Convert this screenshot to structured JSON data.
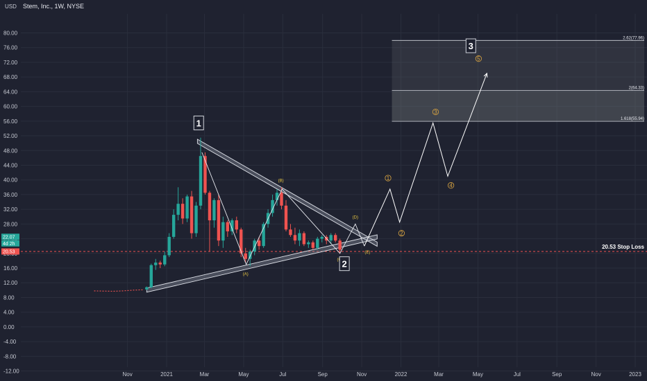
{
  "header": {
    "ticker_title": "Stem, Inc., 1W, NYSE",
    "currency": "USD"
  },
  "chart_data": {
    "type": "candlestick",
    "title": "Stem, Inc., 1W, NYSE",
    "currency": "USD",
    "ylim": [
      -14,
      84
    ],
    "y_ticks": [
      80,
      76,
      72,
      68,
      64,
      60,
      56,
      52,
      48,
      44,
      40,
      36,
      32,
      28,
      24,
      20,
      16,
      12,
      8,
      4,
      0,
      -4,
      -8,
      -12
    ],
    "y_tick_labels": [
      "80.00",
      "76.00",
      "72.00",
      "68.00",
      "64.00",
      "60.00",
      "56.00",
      "52.00",
      "48.00",
      "44.00",
      "40.00",
      "36.00",
      "32.00",
      "28.00",
      "24.00",
      "20.00",
      "16.00",
      "12.00",
      "8.00",
      "4.00",
      "0.00",
      "-4.00",
      "-8.00",
      "-12.00"
    ],
    "x_ticks": [
      {
        "label": "Nov",
        "date": "2020-11-01"
      },
      {
        "label": "2021",
        "date": "2021-01-01"
      },
      {
        "label": "Mar",
        "date": "2021-03-01"
      },
      {
        "label": "May",
        "date": "2021-05-01"
      },
      {
        "label": "Jul",
        "date": "2021-07-01"
      },
      {
        "label": "Sep",
        "date": "2021-09-01"
      },
      {
        "label": "Nov",
        "date": "2021-11-01"
      },
      {
        "label": "2022",
        "date": "2022-01-01"
      },
      {
        "label": "Mar",
        "date": "2022-03-01"
      },
      {
        "label": "May",
        "date": "2022-05-01"
      },
      {
        "label": "Jul",
        "date": "2022-07-01"
      },
      {
        "label": "Sep",
        "date": "2022-09-01"
      },
      {
        "label": "Nov",
        "date": "2022-11-01"
      },
      {
        "label": "2023",
        "date": "2023-01-01"
      }
    ],
    "pre_listing_line": [
      {
        "date": "2020-09-10",
        "y": 9.8
      },
      {
        "date": "2020-09-25",
        "y": 9.75
      },
      {
        "date": "2020-10-10",
        "y": 9.7
      },
      {
        "date": "2020-10-25",
        "y": 9.8
      },
      {
        "date": "2020-11-10",
        "y": 10.0
      },
      {
        "date": "2020-11-25",
        "y": 10.1
      }
    ],
    "candles": [
      {
        "date": "2020-12-01",
        "o": 10.2,
        "h": 11.0,
        "l": 10.0,
        "c": 10.8
      },
      {
        "date": "2020-12-08",
        "o": 10.8,
        "h": 17.2,
        "l": 10.5,
        "c": 16.8
      },
      {
        "date": "2020-12-15",
        "o": 16.8,
        "h": 18.5,
        "l": 15.5,
        "c": 17.5
      },
      {
        "date": "2020-12-22",
        "o": 17.5,
        "h": 18.0,
        "l": 16.0,
        "c": 17.0
      },
      {
        "date": "2020-12-29",
        "o": 17.0,
        "h": 20.5,
        "l": 16.5,
        "c": 19.5
      },
      {
        "date": "2021-01-05",
        "o": 19.5,
        "h": 25.5,
        "l": 19.0,
        "c": 24.5
      },
      {
        "date": "2021-01-12",
        "o": 24.5,
        "h": 32.0,
        "l": 24.0,
        "c": 30.5
      },
      {
        "date": "2021-01-19",
        "o": 30.5,
        "h": 38.0,
        "l": 29.0,
        "c": 33.5
      },
      {
        "date": "2021-01-26",
        "o": 33.5,
        "h": 35.0,
        "l": 28.0,
        "c": 29.5
      },
      {
        "date": "2021-02-02",
        "o": 29.5,
        "h": 36.0,
        "l": 28.5,
        "c": 35.5
      },
      {
        "date": "2021-02-09",
        "o": 35.5,
        "h": 37.0,
        "l": 24.0,
        "c": 25.5
      },
      {
        "date": "2021-02-16",
        "o": 25.5,
        "h": 34.0,
        "l": 24.5,
        "c": 33.0
      },
      {
        "date": "2021-02-23",
        "o": 33.0,
        "h": 51.5,
        "l": 32.0,
        "c": 46.5
      },
      {
        "date": "2021-03-02",
        "o": 46.5,
        "h": 47.5,
        "l": 36.0,
        "c": 36.5
      },
      {
        "date": "2021-03-09",
        "o": 36.5,
        "h": 37.0,
        "l": 20.5,
        "c": 29.0
      },
      {
        "date": "2021-03-16",
        "o": 29.0,
        "h": 35.0,
        "l": 27.0,
        "c": 34.5
      },
      {
        "date": "2021-03-23",
        "o": 34.5,
        "h": 36.0,
        "l": 22.0,
        "c": 23.5
      },
      {
        "date": "2021-03-30",
        "o": 23.5,
        "h": 30.0,
        "l": 21.5,
        "c": 28.5
      },
      {
        "date": "2021-04-06",
        "o": 28.5,
        "h": 29.0,
        "l": 24.5,
        "c": 26.0
      },
      {
        "date": "2021-04-13",
        "o": 26.0,
        "h": 29.5,
        "l": 25.0,
        "c": 29.0
      },
      {
        "date": "2021-04-20",
        "o": 29.0,
        "h": 30.0,
        "l": 25.5,
        "c": 26.5
      },
      {
        "date": "2021-04-27",
        "o": 26.5,
        "h": 27.0,
        "l": 19.0,
        "c": 20.0
      },
      {
        "date": "2021-05-04",
        "o": 20.0,
        "h": 21.5,
        "l": 17.5,
        "c": 18.5
      },
      {
        "date": "2021-05-11",
        "o": 18.5,
        "h": 21.0,
        "l": 16.5,
        "c": 20.5
      },
      {
        "date": "2021-05-18",
        "o": 20.5,
        "h": 24.0,
        "l": 19.5,
        "c": 23.5
      },
      {
        "date": "2021-05-25",
        "o": 23.5,
        "h": 24.5,
        "l": 21.0,
        "c": 22.0
      },
      {
        "date": "2021-06-01",
        "o": 22.0,
        "h": 28.5,
        "l": 21.5,
        "c": 28.0
      },
      {
        "date": "2021-06-08",
        "o": 28.0,
        "h": 32.0,
        "l": 27.0,
        "c": 31.0
      },
      {
        "date": "2021-06-15",
        "o": 31.0,
        "h": 36.0,
        "l": 30.0,
        "c": 34.5
      },
      {
        "date": "2021-06-22",
        "o": 34.5,
        "h": 37.5,
        "l": 33.0,
        "c": 36.5
      },
      {
        "date": "2021-06-29",
        "o": 36.5,
        "h": 38.0,
        "l": 32.0,
        "c": 33.0
      },
      {
        "date": "2021-07-06",
        "o": 33.0,
        "h": 34.5,
        "l": 26.0,
        "c": 26.5
      },
      {
        "date": "2021-07-13",
        "o": 26.5,
        "h": 28.0,
        "l": 24.5,
        "c": 25.0
      },
      {
        "date": "2021-07-20",
        "o": 25.0,
        "h": 27.0,
        "l": 22.5,
        "c": 23.5
      },
      {
        "date": "2021-07-27",
        "o": 23.5,
        "h": 26.5,
        "l": 22.0,
        "c": 25.5
      },
      {
        "date": "2021-08-03",
        "o": 25.5,
        "h": 26.0,
        "l": 22.0,
        "c": 22.5
      },
      {
        "date": "2021-08-10",
        "o": 22.5,
        "h": 23.5,
        "l": 21.5,
        "c": 23.0
      },
      {
        "date": "2021-08-17",
        "o": 23.0,
        "h": 23.5,
        "l": 21.0,
        "c": 21.5
      },
      {
        "date": "2021-08-24",
        "o": 21.5,
        "h": 24.5,
        "l": 21.0,
        "c": 24.0
      },
      {
        "date": "2021-08-31",
        "o": 24.0,
        "h": 25.0,
        "l": 23.0,
        "c": 24.5
      },
      {
        "date": "2021-09-07",
        "o": 24.5,
        "h": 25.0,
        "l": 22.5,
        "c": 23.5
      },
      {
        "date": "2021-09-14",
        "o": 23.5,
        "h": 25.5,
        "l": 22.5,
        "c": 25.0
      },
      {
        "date": "2021-09-21",
        "o": 25.0,
        "h": 25.5,
        "l": 23.0,
        "c": 23.5
      },
      {
        "date": "2021-09-28",
        "o": 23.5,
        "h": 24.0,
        "l": 20.0,
        "c": 21.0
      }
    ],
    "colors": {
      "up": "#26a69a",
      "down": "#ef5350",
      "background": "#1f2230",
      "stop_loss_line": "#ef5350",
      "projection_line": "#ffffff",
      "wave_number": "#d9a441",
      "corrective_label": "#e8c640"
    },
    "triangle": {
      "upper": [
        {
          "date": "2021-02-18",
          "y": 50.5
        },
        {
          "date": "2021-11-25",
          "y": 22.5
        }
      ],
      "lower": [
        {
          "date": "2020-12-01",
          "y": 10.0
        },
        {
          "date": "2021-11-25",
          "y": 24.5
        }
      ]
    },
    "wave_path": [
      {
        "date": "2021-02-25",
        "y": 47.5
      },
      {
        "date": "2021-05-05",
        "y": 17.0
      },
      {
        "date": "2021-06-30",
        "y": 37.5
      },
      {
        "date": "2021-09-28",
        "y": 20.0
      },
      {
        "date": "2021-10-22",
        "y": 28.0
      },
      {
        "date": "2021-11-05",
        "y": 22.0
      }
    ],
    "projection_path": [
      {
        "date": "2021-11-05",
        "y": 22.0
      },
      {
        "date": "2021-12-15",
        "y": 37.5
      },
      {
        "date": "2021-12-30",
        "y": 28.5
      },
      {
        "date": "2022-02-20",
        "y": 55.5
      },
      {
        "date": "2022-03-15",
        "y": 41.0
      },
      {
        "date": "2022-05-15",
        "y": 69.0
      }
    ],
    "wave_labels": [
      {
        "text": "1",
        "date": "2021-12-12",
        "y": 40.5,
        "kind": "impulse"
      },
      {
        "text": "2",
        "date": "2022-01-02",
        "y": 25.5,
        "kind": "impulse"
      },
      {
        "text": "3",
        "date": "2022-02-24",
        "y": 58.5,
        "kind": "impulse"
      },
      {
        "text": "4",
        "date": "2022-03-20",
        "y": 38.5,
        "kind": "impulse"
      },
      {
        "text": "5",
        "date": "2022-05-02",
        "y": 73.0,
        "kind": "impulse"
      },
      {
        "text": "(A)",
        "date": "2021-05-04",
        "y": 14.0,
        "kind": "corrective"
      },
      {
        "text": "(B)",
        "date": "2021-06-28",
        "y": 39.5,
        "kind": "corrective"
      },
      {
        "text": "(C)",
        "date": "2021-09-28",
        "y": 18.0,
        "kind": "corrective"
      },
      {
        "text": "(D)",
        "date": "2021-10-22",
        "y": 29.5,
        "kind": "corrective"
      },
      {
        "text": "(E)",
        "date": "2021-11-10",
        "y": 20.0,
        "kind": "corrective"
      }
    ],
    "big_labels": [
      {
        "text": "1",
        "date": "2021-02-20",
        "y": 55.5
      },
      {
        "text": "2",
        "date": "2021-10-05",
        "y": 17.2
      },
      {
        "text": "3",
        "date": "2022-04-20",
        "y": 76.5
      }
    ],
    "fib_levels": [
      {
        "label": "2.62(77.96)",
        "value": 77.96
      },
      {
        "label": "2(64.33)",
        "value": 64.33
      },
      {
        "label": "1.618(55.94)",
        "value": 55.94
      }
    ],
    "fib_box_start_date": "2021-12-18",
    "stop_loss": {
      "value": 20.53,
      "label": "20.53 Stop Loss"
    },
    "price_badges": [
      {
        "text": "22.07",
        "value": 22.07,
        "color": "#26a69a"
      },
      {
        "text": "4d 2h",
        "value": 22.07,
        "color": "#26a69a"
      },
      {
        "text": "20.53",
        "value": 20.53,
        "color": "#ef5350"
      }
    ]
  }
}
